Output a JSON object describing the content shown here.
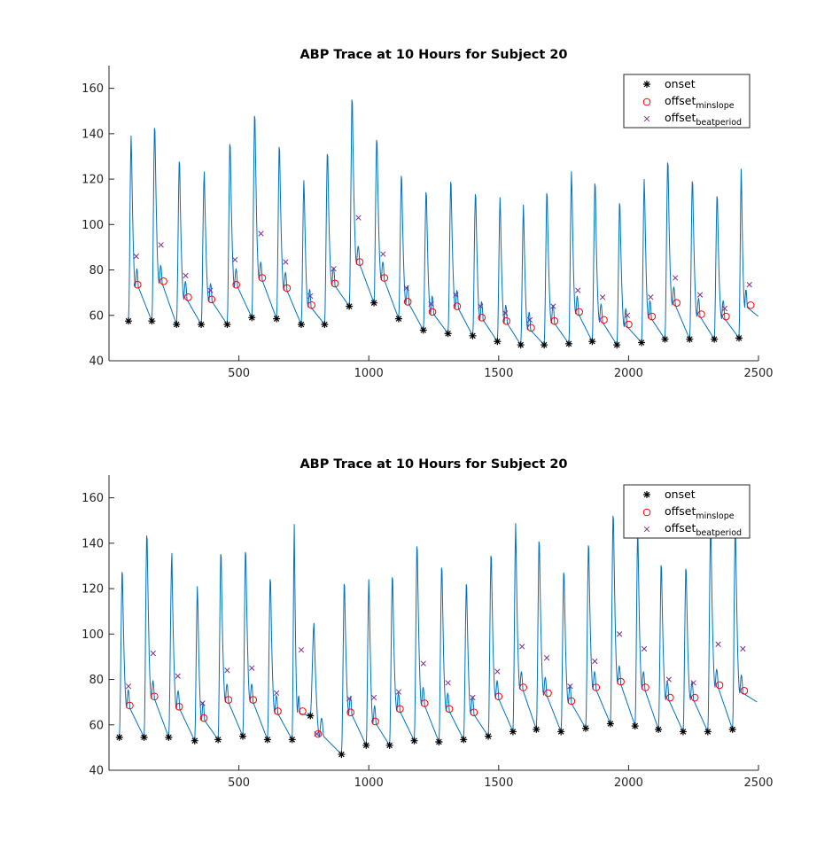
{
  "chart_data": [
    {
      "type": "line",
      "title": "ABP Trace at 10 Hours for Subject 20",
      "xlabel": "",
      "ylabel": "",
      "xlim": [
        0,
        2500
      ],
      "ylim": [
        40,
        170
      ],
      "xticks": [
        500,
        1000,
        1500,
        2000,
        2500
      ],
      "yticks": [
        40,
        60,
        80,
        100,
        120,
        140,
        160
      ],
      "grid": false,
      "legend_position": "top-right",
      "colors": {
        "trace": "#0072BD",
        "onset": "#000000",
        "offset_minslope": "#FF0000",
        "offset_beatperiod": "#7E2F8E"
      },
      "legend": [
        {
          "marker": "star",
          "text": "onset",
          "sub": ""
        },
        {
          "marker": "circle",
          "text": "offset",
          "sub": "minslope"
        },
        {
          "marker": "x",
          "text": "offset",
          "sub": "beatperiod"
        }
      ],
      "series": [
        {
          "name": "onset",
          "x": [
            75,
            165,
            260,
            355,
            455,
            550,
            645,
            740,
            830,
            925,
            1020,
            1115,
            1210,
            1305,
            1400,
            1495,
            1585,
            1675,
            1770,
            1860,
            1955,
            2050,
            2140,
            2235,
            2330,
            2425
          ],
          "y": [
            57.5,
            57.5,
            56,
            56,
            56,
            59,
            58.5,
            56,
            56,
            64,
            65.5,
            58.5,
            53.5,
            52,
            51,
            48.5,
            47,
            47,
            47.5,
            48.5,
            47,
            48,
            49.5,
            49.5,
            49.5,
            50
          ]
        },
        {
          "name": "offset_minslope",
          "x": [
            110,
            210,
            305,
            395,
            490,
            590,
            685,
            780,
            870,
            965,
            1060,
            1150,
            1245,
            1340,
            1435,
            1530,
            1625,
            1715,
            1810,
            1905,
            2000,
            2090,
            2185,
            2280,
            2375,
            2470
          ],
          "y": [
            73.5,
            75,
            68,
            67,
            73.5,
            76.5,
            72,
            64.5,
            74,
            83.5,
            76.5,
            66,
            61.5,
            64,
            59,
            57.5,
            54.5,
            57.5,
            61.5,
            58,
            56,
            59.5,
            65.5,
            60.5,
            59.5,
            64.5
          ]
        },
        {
          "name": "offset_beatperiod",
          "x": [
            105,
            200,
            295,
            390,
            485,
            585,
            680,
            775,
            865,
            960,
            1055,
            1145,
            1240,
            1335,
            1430,
            1525,
            1620,
            1710,
            1805,
            1900,
            1995,
            2085,
            2180,
            2275,
            2370,
            2465
          ],
          "y": [
            86,
            91,
            77.5,
            71,
            84.5,
            96,
            83.5,
            68.5,
            80.5,
            103,
            87,
            72,
            65,
            69,
            64,
            61,
            58,
            64,
            71,
            68,
            60,
            68,
            76.5,
            69,
            63,
            73.5
          ]
        }
      ]
    },
    {
      "type": "line",
      "title": "ABP Trace at 10 Hours for Subject 20",
      "xlabel": "",
      "ylabel": "",
      "xlim": [
        0,
        2500
      ],
      "ylim": [
        40,
        170
      ],
      "xticks": [
        500,
        1000,
        1500,
        2000,
        2500
      ],
      "yticks": [
        40,
        60,
        80,
        100,
        120,
        140,
        160
      ],
      "grid": false,
      "legend_position": "top-right",
      "colors": {
        "trace": "#0072BD",
        "onset": "#000000",
        "offset_minslope": "#FF0000",
        "offset_beatperiod": "#7E2F8E"
      },
      "legend": [
        {
          "marker": "star",
          "text": "onset",
          "sub": ""
        },
        {
          "marker": "circle",
          "text": "offset",
          "sub": "minslope"
        },
        {
          "marker": "x",
          "text": "offset",
          "sub": "beatperiod"
        }
      ],
      "series": [
        {
          "name": "onset",
          "x": [
            40,
            135,
            230,
            330,
            420,
            515,
            610,
            705,
            775,
            895,
            990,
            1080,
            1175,
            1270,
            1365,
            1460,
            1555,
            1645,
            1740,
            1835,
            1930,
            2025,
            2115,
            2210,
            2305,
            2400
          ],
          "y": [
            54.5,
            54.5,
            54.5,
            53,
            53.5,
            55,
            53.5,
            53.5,
            64,
            47,
            51,
            51,
            53,
            52.5,
            53.5,
            55,
            57,
            58,
            57,
            58.5,
            60.5,
            59.5,
            58,
            57,
            57,
            58
          ]
        },
        {
          "name": "offset_minslope",
          "x": [
            80,
            175,
            270,
            365,
            460,
            555,
            650,
            745,
            805,
            930,
            1025,
            1120,
            1215,
            1310,
            1405,
            1500,
            1595,
            1690,
            1780,
            1875,
            1970,
            2065,
            2160,
            2255,
            2350,
            2445
          ],
          "y": [
            68.5,
            72.5,
            68,
            63,
            71,
            71,
            66,
            66,
            56,
            65.5,
            61.5,
            67,
            69.5,
            67,
            65.5,
            72.5,
            76.5,
            74,
            70.5,
            76.5,
            79,
            76.5,
            72,
            72,
            77.5,
            75
          ]
        },
        {
          "name": "offset_beatperiod",
          "x": [
            75,
            170,
            265,
            360,
            455,
            550,
            645,
            740,
            800,
            925,
            1020,
            1115,
            1210,
            1305,
            1400,
            1495,
            1590,
            1685,
            1775,
            1870,
            1965,
            2060,
            2155,
            2250,
            2345,
            2440
          ],
          "y": [
            77,
            91.5,
            81.5,
            69.5,
            84,
            85,
            74,
            93,
            56,
            71.5,
            72,
            74.5,
            87,
            78.5,
            72,
            83.5,
            94.5,
            89.5,
            77,
            88,
            100,
            93.5,
            80,
            78.5,
            95.5,
            93.5
          ]
        }
      ]
    }
  ]
}
